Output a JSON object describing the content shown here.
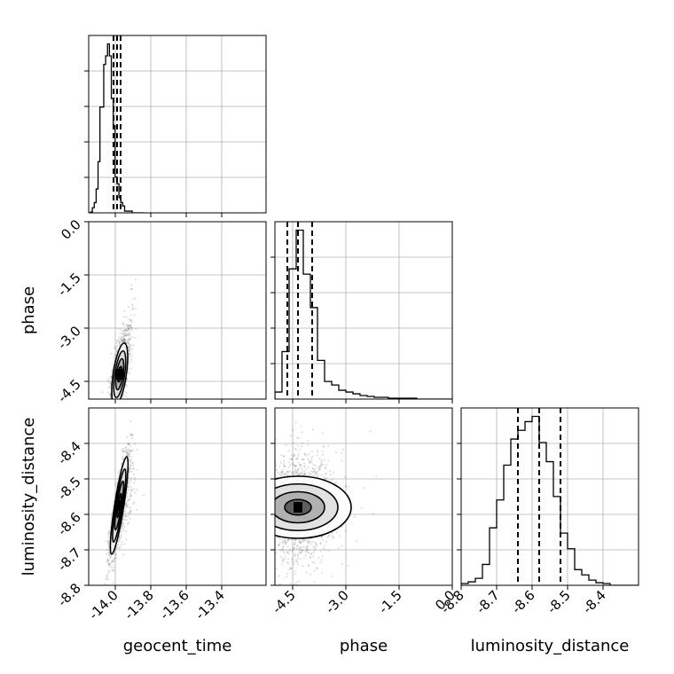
{
  "chart_data": {
    "type": "corner",
    "parameters": [
      "geocent_time",
      "phase",
      "luminosity_distance"
    ],
    "grid": true,
    "ranges": {
      "geocent_time": [
        -14.15,
        -13.15
      ],
      "phase": [
        -5.0,
        0.0
      ],
      "luminosity_distance": [
        -8.8,
        -8.3
      ]
    },
    "ticks": {
      "geocent_time": [
        "-14.0",
        "-13.8",
        "-13.6",
        "-13.4"
      ],
      "phase": [
        "-4.5",
        "-3.0",
        "-1.5",
        "0.0"
      ],
      "luminosity_distance": [
        "-8.8",
        "-8.7",
        "-8.6",
        "-8.5",
        "-8.4"
      ]
    },
    "tick_values": {
      "geocent_time": [
        -14.0,
        -13.8,
        -13.6,
        -13.4
      ],
      "phase": [
        -4.5,
        -3.0,
        -1.5,
        0.0
      ],
      "luminosity_distance": [
        -8.8,
        -8.7,
        -8.6,
        -8.5,
        -8.4
      ]
    },
    "quantiles": {
      "geocent_time": [
        -14.01,
        -13.99,
        -13.97
      ],
      "phase": [
        -4.65,
        -4.35,
        -3.95
      ],
      "luminosity_distance": [
        -8.64,
        -8.58,
        -8.52
      ]
    },
    "histograms": {
      "geocent_time": {
        "bin_start": -14.14,
        "bin_width": 0.0107,
        "counts": [
          0.5,
          3,
          6,
          14,
          30,
          62,
          62,
          87,
          92,
          99,
          92,
          67,
          51,
          21,
          17,
          9,
          6,
          4,
          1,
          1,
          1,
          1,
          0,
          0,
          0,
          0,
          0,
          0
        ]
      },
      "phase": {
        "bin_start": -5.0,
        "bin_width": 0.2,
        "counts": [
          4,
          27,
          74,
          96,
          71,
          52,
          22,
          10,
          8,
          5,
          4,
          3,
          2,
          1.5,
          1,
          1,
          0.5,
          0.5,
          0.5,
          0.5,
          0,
          0,
          0,
          0,
          0
        ]
      },
      "luminosity_distance": {
        "bin_start": -8.8,
        "bin_width": 0.02,
        "counts": [
          1,
          2,
          4,
          12,
          33,
          49,
          69,
          84,
          89,
          94,
          97,
          82,
          71,
          51,
          30,
          21,
          9,
          6,
          3,
          1.5,
          1,
          0,
          0,
          0,
          0
        ]
      }
    },
    "pairs": [
      {
        "x": "geocent_time",
        "y": "phase",
        "center": [
          -13.975,
          -4.3
        ],
        "sigma": [
          0.018,
          0.35
        ],
        "corr": 0.55
      },
      {
        "x": "geocent_time",
        "y": "luminosity_distance",
        "center": [
          -13.978,
          -8.575
        ],
        "sigma": [
          0.02,
          0.055
        ],
        "corr": 0.85
      },
      {
        "x": "phase",
        "y": "luminosity_distance",
        "center": [
          -4.35,
          -8.58
        ],
        "sigma": [
          0.35,
          0.06
        ],
        "corr": 0.0
      }
    ],
    "contour_levels_sigma": [
      0.5,
      1.0,
      1.5,
      2.0
    ],
    "colors": {
      "line": "#000000",
      "grid": "#b0b0b0",
      "points": "#000000",
      "fill_dark": "#000000"
    }
  }
}
